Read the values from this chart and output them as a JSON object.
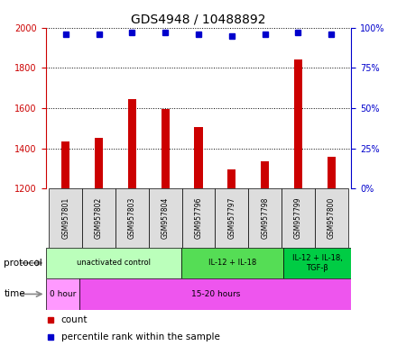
{
  "title": "GDS4948 / 10488892",
  "samples": [
    "GSM957801",
    "GSM957802",
    "GSM957803",
    "GSM957804",
    "GSM957796",
    "GSM957797",
    "GSM957798",
    "GSM957799",
    "GSM957800"
  ],
  "counts": [
    1435,
    1450,
    1645,
    1595,
    1505,
    1295,
    1335,
    1840,
    1360
  ],
  "percentile_ranks": [
    96,
    96,
    97,
    97,
    96,
    95,
    96,
    97,
    96
  ],
  "ylim_left": [
    1200,
    2000
  ],
  "ylim_right": [
    0,
    100
  ],
  "yticks_left": [
    1200,
    1400,
    1600,
    1800,
    2000
  ],
  "yticks_right": [
    0,
    25,
    50,
    75,
    100
  ],
  "bar_color": "#cc0000",
  "dot_color": "#0000cc",
  "protocol_groups": [
    {
      "label": "unactivated control",
      "start": 0,
      "end": 4,
      "color": "#bbffbb"
    },
    {
      "label": "IL-12 + IL-18",
      "start": 4,
      "end": 7,
      "color": "#55dd55"
    },
    {
      "label": "IL-12 + IL-18,\nTGF-β",
      "start": 7,
      "end": 9,
      "color": "#00cc44"
    }
  ],
  "time_groups": [
    {
      "label": "0 hour",
      "start": 0,
      "end": 1,
      "color": "#ff99ff"
    },
    {
      "label": "15-20 hours",
      "start": 1,
      "end": 9,
      "color": "#ee55ee"
    }
  ],
  "protocol_label": "protocol",
  "time_label": "time",
  "legend_count_label": "count",
  "legend_pct_label": "percentile rank within the sample",
  "sample_box_color": "#dddddd",
  "left_axis_color": "#cc0000",
  "right_axis_color": "#0000cc",
  "title_fontsize": 10,
  "tick_fontsize": 7,
  "bar_width": 0.25
}
